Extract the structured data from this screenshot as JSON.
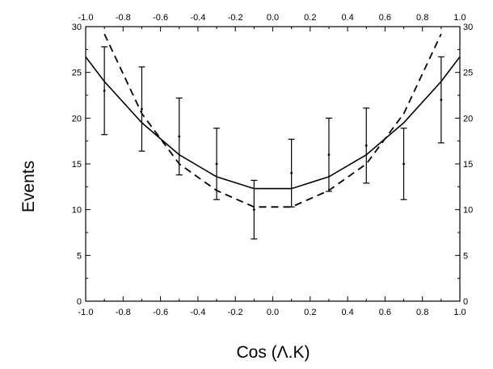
{
  "chart_data": {
    "type": "scatter",
    "xlabel": "Cos (Λ.K)",
    "ylabel": "Events",
    "xlim": [
      -1.0,
      1.0
    ],
    "ylim": [
      0,
      30
    ],
    "x_ticks": [
      "-1.0",
      "-0.8",
      "-0.6",
      "-0.4",
      "-0.2",
      "0.0",
      "0.2",
      "0.4",
      "0.6",
      "0.8",
      "1.0"
    ],
    "y_ticks": [
      "0",
      "5",
      "10",
      "15",
      "20",
      "25",
      "30"
    ],
    "mirror_axes": true,
    "grid": false,
    "series": [
      {
        "style": "points-with-error-bars",
        "x": [
          -0.9,
          -0.7,
          -0.5,
          -0.3,
          -0.1,
          0.1,
          0.3,
          0.5,
          0.7,
          0.9
        ],
        "y": [
          23,
          21,
          18,
          15,
          10,
          14,
          16,
          17,
          15,
          22
        ],
        "err": [
          4.8,
          4.6,
          4.2,
          3.9,
          3.2,
          3.7,
          4.0,
          4.1,
          3.9,
          4.7
        ]
      },
      {
        "style": "solid-line",
        "x": [
          -1.0,
          -0.9,
          -0.7,
          -0.5,
          -0.3,
          -0.1,
          0.1,
          0.3,
          0.5,
          0.7,
          0.9,
          1.0
        ],
        "y": [
          26.7,
          24.0,
          19.5,
          16.0,
          13.6,
          12.3,
          12.3,
          13.6,
          16.0,
          19.5,
          24.0,
          26.7
        ]
      },
      {
        "style": "dashed-line",
        "x": [
          -0.9,
          -0.7,
          -0.5,
          -0.3,
          -0.1,
          0.1,
          0.3,
          0.5,
          0.7,
          0.9
        ],
        "y": [
          29.2,
          20.5,
          15.0,
          12.1,
          10.3,
          10.3,
          12.1,
          15.0,
          20.5,
          29.2
        ]
      }
    ]
  }
}
